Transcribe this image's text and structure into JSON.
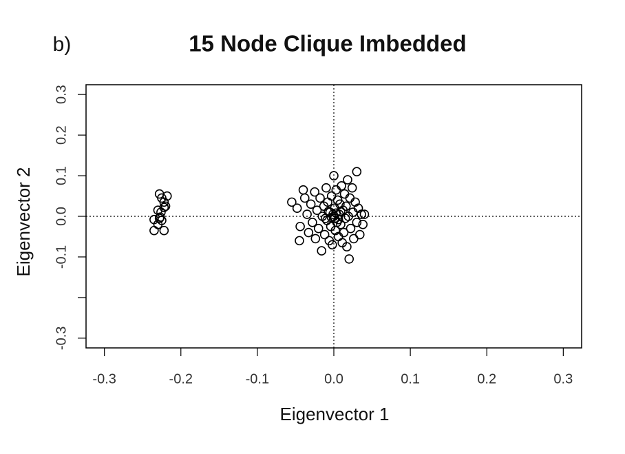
{
  "chart_data": {
    "type": "scatter",
    "panel_label": "b)",
    "title": "15 Node Clique Imbedded",
    "x_label": "Eigenvector 1",
    "y_label": "Eigenvector 2",
    "xlim": [
      -0.324,
      0.324
    ],
    "ylim": [
      -0.324,
      0.324
    ],
    "xticks": [
      -0.3,
      -0.2,
      -0.1,
      {
        "value": 0,
        "label": "0.0"
      },
      0.1,
      0.2,
      0.3
    ],
    "yticks": [
      -0.3,
      {
        "value": -0.2,
        "label": null
      },
      -0.1,
      {
        "value": 0,
        "label": "0.0"
      },
      0.1,
      0.2,
      0.3
    ],
    "reference_lines": {
      "x": 0,
      "y": 0
    },
    "color": "#000000",
    "x": [
      -0.228,
      -0.218,
      -0.225,
      -0.222,
      -0.22,
      -0.222,
      -0.23,
      -0.226,
      -0.235,
      -0.228,
      -0.225,
      -0.23,
      -0.235,
      -0.222,
      -0.227,
      -0.055,
      -0.048,
      -0.045,
      -0.044,
      -0.04,
      -0.038,
      -0.035,
      -0.033,
      -0.03,
      -0.028,
      -0.025,
      -0.024,
      -0.022,
      -0.02,
      -0.018,
      -0.016,
      -0.015,
      -0.013,
      -0.012,
      -0.01,
      -0.009,
      -0.008,
      -0.006,
      -0.005,
      -0.004,
      -0.003,
      -0.002,
      0,
      0,
      0.001,
      0.002,
      0.003,
      0.004,
      0.005,
      0.006,
      0.007,
      0.008,
      0.009,
      0.01,
      0.011,
      0.012,
      0.013,
      0.014,
      0.015,
      0.016,
      0.017,
      0.018,
      0.019,
      0.02,
      0.021,
      0.022,
      0.024,
      0.025,
      0.026,
      0.028,
      0.03,
      0.03,
      0.032,
      0.034,
      0.036,
      0.038,
      0.04,
      -0.001,
      0.001,
      -0.003,
      0.003,
      0.006,
      -0.007,
      0.009,
      -0.011
    ],
    "values": [
      0.055,
      0.05,
      0.045,
      0.035,
      0.025,
      0.022,
      0.015,
      0.01,
      -0.008,
      -0.005,
      -0.01,
      -0.02,
      -0.035,
      -0.035,
      -0.002,
      0.035,
      0.02,
      -0.06,
      -0.025,
      0.065,
      0.045,
      0.005,
      -0.04,
      0.03,
      -0.015,
      0.06,
      -0.055,
      0.015,
      -0.03,
      0.045,
      -0.085,
      0,
      0.025,
      -0.045,
      0.07,
      -0.01,
      0.035,
      -0.06,
      0.01,
      -0.025,
      0.05,
      -0.07,
      0.1,
      0,
      0.02,
      -0.035,
      0.065,
      -0.015,
      0.04,
      -0.05,
      0.005,
      0.03,
      -0.02,
      0.075,
      -0.065,
      0.015,
      -0.04,
      0.055,
      -0.005,
      0.025,
      -0.075,
      0.09,
      0,
      -0.105,
      0.045,
      -0.03,
      0.07,
      0.01,
      -0.055,
      0.035,
      0.11,
      -0.015,
      0.02,
      -0.045,
      0.005,
      -0.02,
      0.005,
      0.005,
      -0.005,
      -0.003,
      0.008,
      -0.008,
      0.012,
      0.012,
      -0.005
    ]
  }
}
